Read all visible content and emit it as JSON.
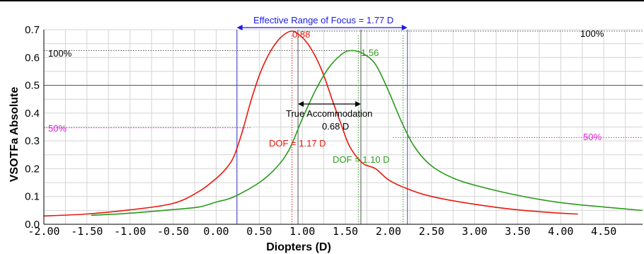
{
  "chart_data": {
    "type": "line",
    "xlabel": "Diopters (D)",
    "ylabel": "VSOTFa Absolute",
    "xlim": [
      -2.0,
      4.95
    ],
    "ylim": [
      0.0,
      0.7
    ],
    "x_ticks": [
      "-2.00",
      "-1.50",
      "-1.00",
      "-0.50",
      "0.00",
      "0.50",
      "1.00",
      "1.50",
      "2.00",
      "2.50",
      "3.00",
      "3.50",
      "4.00",
      "4.50"
    ],
    "x_tick_values": [
      -2.0,
      -1.5,
      -1.0,
      -0.5,
      0.0,
      0.5,
      1.0,
      1.5,
      2.0,
      2.5,
      3.0,
      3.5,
      4.0,
      4.5
    ],
    "y_ticks": [
      "0.0",
      "0.1",
      "0.2",
      "0.3",
      "0.4",
      "0.5",
      "0.6",
      "0.7"
    ],
    "y_tick_values": [
      0.0,
      0.1,
      0.2,
      0.3,
      0.4,
      0.5,
      0.6,
      0.7
    ],
    "grid": true,
    "series": [
      {
        "color": "#e8180c",
        "x": [
          -2.0,
          -1.5,
          -1.0,
          -0.5,
          -0.2,
          0.0,
          0.1,
          0.2,
          0.3,
          0.4,
          0.5,
          0.6,
          0.7,
          0.8,
          0.88,
          0.95,
          1.05,
          1.15,
          1.25,
          1.35,
          1.45,
          1.55,
          1.7,
          1.85,
          2.0,
          2.2,
          2.5,
          3.0,
          3.5,
          4.0,
          4.2
        ],
        "y": [
          0.03,
          0.037,
          0.052,
          0.075,
          0.118,
          0.165,
          0.195,
          0.24,
          0.33,
          0.44,
          0.535,
          0.605,
          0.655,
          0.685,
          0.695,
          0.685,
          0.655,
          0.605,
          0.535,
          0.445,
          0.36,
          0.28,
          0.22,
          0.2,
          0.16,
          0.13,
          0.1,
          0.072,
          0.052,
          0.04,
          0.037
        ]
      },
      {
        "color": "#2b9a1c",
        "x": [
          -1.45,
          -1.0,
          -0.5,
          -0.2,
          0.0,
          0.2,
          0.5,
          0.7,
          0.85,
          1.0,
          1.15,
          1.3,
          1.45,
          1.56,
          1.7,
          1.85,
          2.0,
          2.15,
          2.3,
          2.5,
          2.8,
          3.2,
          3.6,
          4.0,
          4.5,
          4.95
        ],
        "y": [
          0.032,
          0.04,
          0.053,
          0.062,
          0.08,
          0.098,
          0.15,
          0.205,
          0.27,
          0.38,
          0.48,
          0.56,
          0.61,
          0.625,
          0.615,
          0.575,
          0.48,
          0.37,
          0.28,
          0.21,
          0.16,
          0.125,
          0.098,
          0.078,
          0.062,
          0.05
        ]
      }
    ],
    "reference_lines": {
      "h_solid": [
        {
          "y": 0.5,
          "color": "#555555"
        }
      ],
      "h_dotted": [
        {
          "y": 0.695,
          "x0": 0.88,
          "x1": 4.95,
          "color": "#555555"
        },
        {
          "y": 0.625,
          "x0": -2.0,
          "x1": 1.56,
          "color": "#555555"
        },
        {
          "y": 0.347,
          "x0": -2.0,
          "x1": 0.4,
          "color": "#e020d8"
        },
        {
          "y": 0.312,
          "x0": 2.05,
          "x1": 4.95,
          "color": "#e020d8"
        }
      ],
      "v_solid": [
        {
          "x": 0.24,
          "color": "#5050c8"
        },
        {
          "x": 2.22,
          "color": "#5050c8"
        },
        {
          "x": 0.95,
          "color": "#555555"
        },
        {
          "x": 1.68,
          "color": "#555555"
        }
      ],
      "v_dotted": [
        {
          "x": 0.88,
          "color": "#e8180c"
        },
        {
          "x": 1.65,
          "color": "#2b9a1c"
        },
        {
          "x": 2.17,
          "color": "#2b9a1c"
        }
      ]
    },
    "annotations": {
      "range_label": "Effective Range of Focus = 1.77 D",
      "red_peak": "0.88",
      "green_peak": "1.56",
      "hundred_left": "100%",
      "hundred_right": "100%",
      "fifty_left": "50%",
      "fifty_right": "50%",
      "accommodation_label": "True Accommodation",
      "accommodation_value": "0.68 D",
      "red_dof": "DOF = 1.17 D",
      "green_dof": "DOF = 1.10 D"
    },
    "colors": {
      "red": "#e8180c",
      "green": "#2b9a1c",
      "blue": "#1c1ce0",
      "magenta": "#e020d8",
      "grid": "#d4d4d4"
    }
  }
}
